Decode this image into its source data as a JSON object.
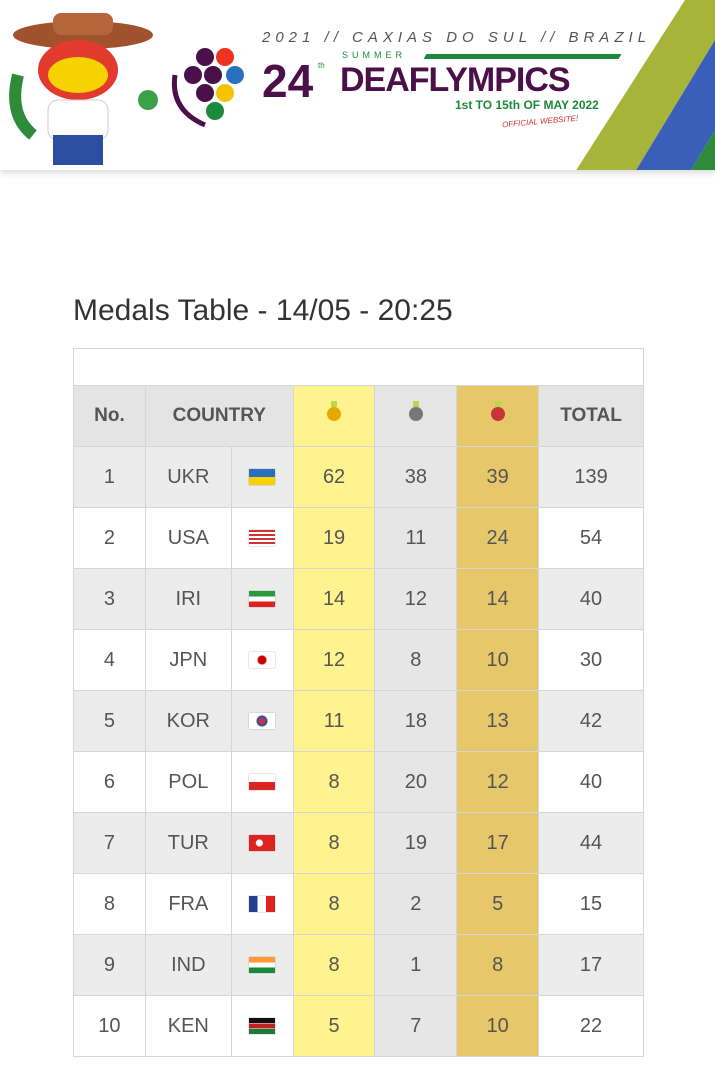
{
  "banner": {
    "line1": "2021 // CAXIAS DO SUL // BRAZIL",
    "summer": "SUMMER",
    "number": "24",
    "ordinal": "th",
    "name": "DEAFLYMPICS",
    "dates": "1st TO 15th OF MAY 2022",
    "official": "OFFICIAL WEBSITE!"
  },
  "title": "Medals Table - 14/05 - 20:25",
  "headers": {
    "no": "No.",
    "country": "COUNTRY",
    "total": "TOTAL"
  },
  "colors": {
    "gold": "#fff38f",
    "silver": "#e6e6e6",
    "bronze": "#e6c76a"
  },
  "rows": [
    {
      "no": "1",
      "country": "UKR",
      "flag": "ukraine-flag",
      "gold": "62",
      "silver": "38",
      "bronze": "39",
      "total": "139"
    },
    {
      "no": "2",
      "country": "USA",
      "flag": "usa-flag",
      "gold": "19",
      "silver": "11",
      "bronze": "24",
      "total": "54"
    },
    {
      "no": "3",
      "country": "IRI",
      "flag": "iran-flag",
      "gold": "14",
      "silver": "12",
      "bronze": "14",
      "total": "40"
    },
    {
      "no": "4",
      "country": "JPN",
      "flag": "japan-flag",
      "gold": "12",
      "silver": "8",
      "bronze": "10",
      "total": "30"
    },
    {
      "no": "5",
      "country": "KOR",
      "flag": "korea-flag",
      "gold": "11",
      "silver": "18",
      "bronze": "13",
      "total": "42"
    },
    {
      "no": "6",
      "country": "POL",
      "flag": "poland-flag",
      "gold": "8",
      "silver": "20",
      "bronze": "12",
      "total": "40"
    },
    {
      "no": "7",
      "country": "TUR",
      "flag": "turkey-flag",
      "gold": "8",
      "silver": "19",
      "bronze": "17",
      "total": "44"
    },
    {
      "no": "8",
      "country": "FRA",
      "flag": "france-flag",
      "gold": "8",
      "silver": "2",
      "bronze": "5",
      "total": "15"
    },
    {
      "no": "9",
      "country": "IND",
      "flag": "india-flag",
      "gold": "8",
      "silver": "1",
      "bronze": "8",
      "total": "17"
    },
    {
      "no": "10",
      "country": "KEN",
      "flag": "kenya-flag",
      "gold": "5",
      "silver": "7",
      "bronze": "10",
      "total": "22"
    }
  ]
}
